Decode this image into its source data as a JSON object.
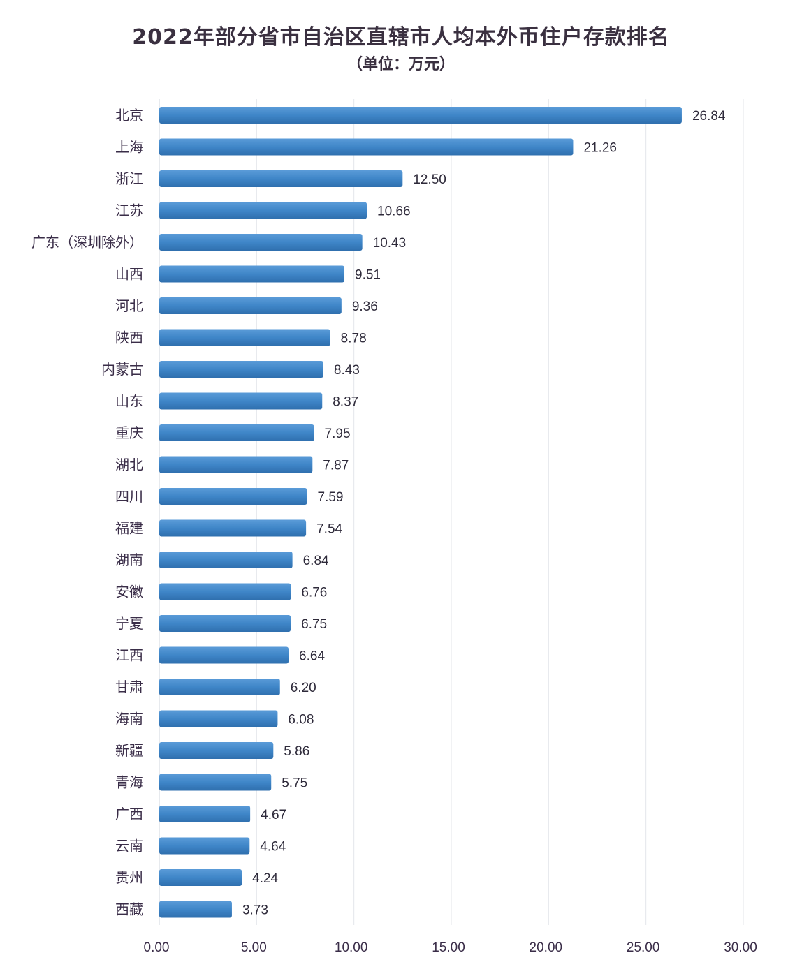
{
  "chart_data": {
    "type": "bar",
    "orientation": "horizontal",
    "title": "2022年部分省市自治区直辖市人均本外币住户存款排名",
    "subtitle": "（单位：万元）",
    "categories": [
      "北京",
      "上海",
      "浙江",
      "江苏",
      "广东（深圳除外）",
      "山西",
      "河北",
      "陕西",
      "内蒙古",
      "山东",
      "重庆",
      "湖北",
      "四川",
      "福建",
      "湖南",
      "安徽",
      "宁夏",
      "江西",
      "甘肃",
      "海南",
      "新疆",
      "青海",
      "广西",
      "云南",
      "贵州",
      "西藏"
    ],
    "values": [
      26.84,
      21.26,
      12.5,
      10.66,
      10.43,
      9.51,
      9.36,
      8.78,
      8.43,
      8.37,
      7.95,
      7.87,
      7.59,
      7.54,
      6.84,
      6.76,
      6.75,
      6.64,
      6.2,
      6.08,
      5.86,
      5.75,
      4.67,
      4.64,
      4.24,
      3.73
    ],
    "data_labels": [
      "26.84",
      "21.26",
      "12.50",
      "10.66",
      "10.43",
      "9.51",
      "9.36",
      "8.78",
      "8.43",
      "8.37",
      "7.95",
      "7.87",
      "7.59",
      "7.54",
      "6.84",
      "6.76",
      "6.75",
      "6.64",
      "6.20",
      "6.08",
      "5.86",
      "5.75",
      "4.67",
      "4.64",
      "4.24",
      "3.73"
    ],
    "x_ticks": [
      "0.00",
      "5.00",
      "10.00",
      "15.00",
      "20.00",
      "25.00",
      "30.00"
    ],
    "xlim": [
      0,
      30
    ],
    "xlabel": "",
    "ylabel": "",
    "grid": true,
    "bar_color": "#3f86c8"
  }
}
